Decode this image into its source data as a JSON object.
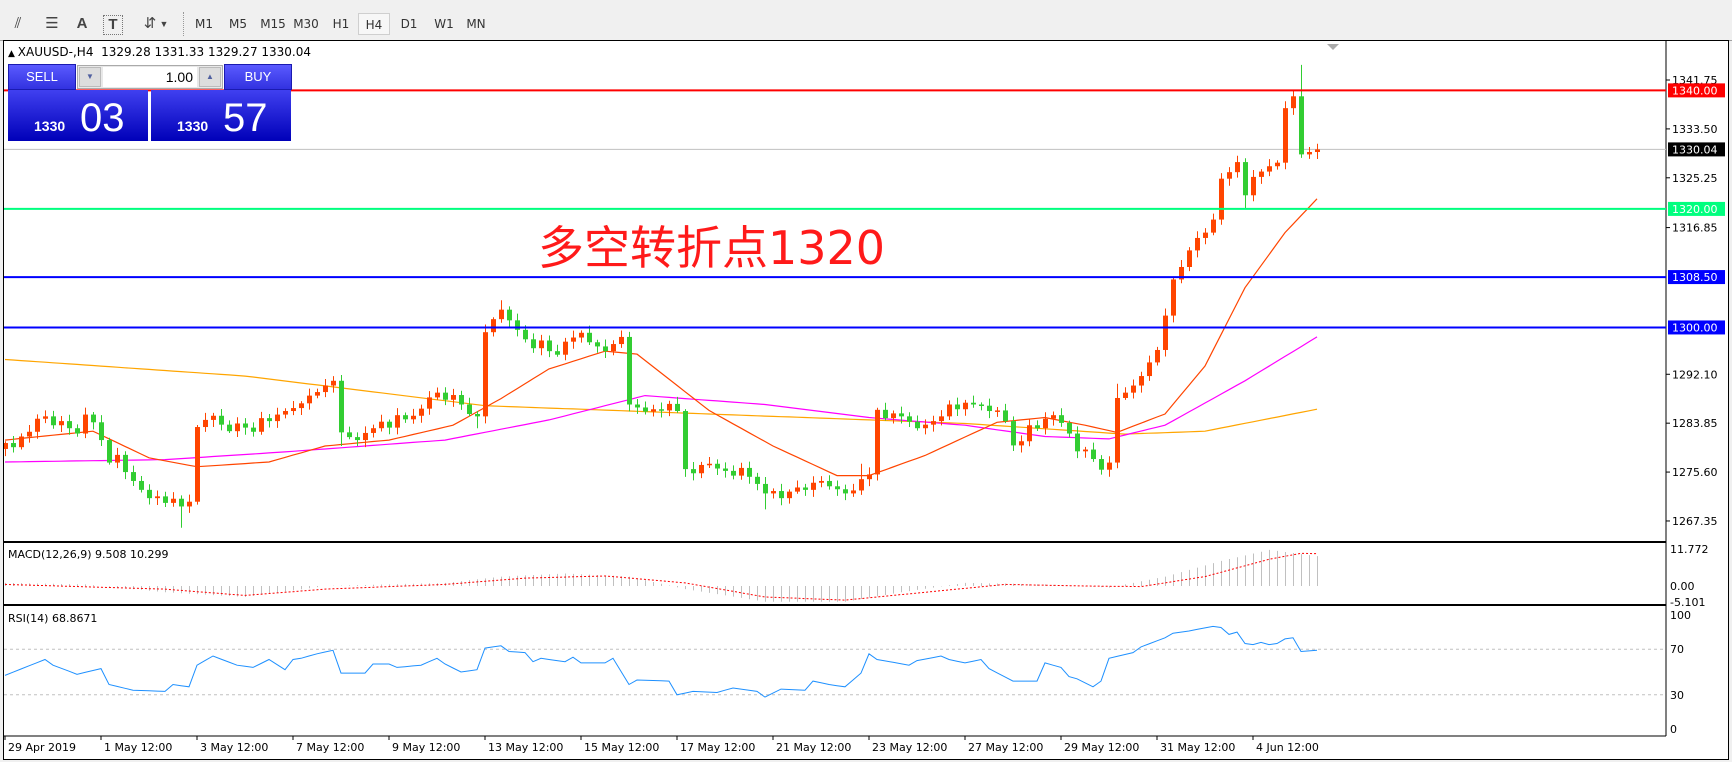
{
  "toolbar": {
    "tools": [
      {
        "icon": "fibonacci-expansion-icon",
        "glyph": "⫽"
      },
      {
        "icon": "fibonacci-fan-icon",
        "glyph": "☰"
      },
      {
        "icon": "text-icon",
        "glyph": "A"
      },
      {
        "icon": "text-label-icon",
        "glyph": "T"
      },
      {
        "icon": "arrows-icon",
        "glyph": "⇵"
      }
    ],
    "timeframes": [
      "M1",
      "M5",
      "M15",
      "M30",
      "H1",
      "H4",
      "D1",
      "W1",
      "MN"
    ],
    "selected_timeframe": "H4"
  },
  "chart": {
    "header": "XAUUSD-,H4  1329.28 1331.33 1329.27 1330.04",
    "annotation": "多空转折点1320",
    "trade_panel": {
      "sell_label": "SELL",
      "buy_label": "BUY",
      "lot": "1.00",
      "sell_price_prefix": "1330",
      "sell_price_big": "03",
      "buy_price_prefix": "1330",
      "buy_price_big": "57"
    },
    "macd_label": "MACD(12,26,9) 9.508 10.299",
    "rsi_label": "RSI(14) 68.8671"
  },
  "chart_data": {
    "type": "candlestick",
    "symbol": "XAUUSD-",
    "timeframe": "H4",
    "up_color": "#ff4500",
    "down_color": "#32cd32",
    "first_open": 1279.5,
    "closes": [
      1280.5,
      1279.8,
      1281.6,
      1282.4,
      1284.6,
      1285.0,
      1283.5,
      1284.2,
      1283.0,
      1282.1,
      1285.3,
      1284.0,
      1281.0,
      1277.2,
      1278.5,
      1275.6,
      1274.1,
      1272.6,
      1271.2,
      1271.5,
      1270.4,
      1271.1,
      1269.8,
      1270.6,
      1283.2,
      1284.4,
      1285.1,
      1283.6,
      1282.5,
      1283.8,
      1283.1,
      1282.4,
      1284.7,
      1284.2,
      1285.3,
      1285.9,
      1286.4,
      1287.2,
      1288.5,
      1289.1,
      1290.2,
      1291.0,
      1282.3,
      1281.5,
      1281.0,
      1282.2,
      1283.0,
      1284.1,
      1283.1,
      1285.2,
      1284.5,
      1285.1,
      1286.3,
      1288.2,
      1289.0,
      1287.8,
      1288.6,
      1287.0,
      1285.4,
      1285.0,
      1299.2,
      1301.4,
      1303.0,
      1301.2,
      1299.6,
      1298.0,
      1296.5,
      1297.8,
      1296.0,
      1295.4,
      1297.6,
      1298.3,
      1299.1,
      1297.5,
      1296.8,
      1296.0,
      1297.2,
      1298.4,
      1287.0,
      1286.5,
      1285.8,
      1286.2,
      1286.0,
      1287.1,
      1285.9,
      1276.1,
      1275.4,
      1276.8,
      1277.0,
      1276.2,
      1275.8,
      1275.0,
      1276.3,
      1274.8,
      1273.6,
      1272.0,
      1272.4,
      1271.2,
      1272.3,
      1273.0,
      1272.6,
      1273.8,
      1274.1,
      1273.2,
      1272.7,
      1272.0,
      1272.5,
      1274.4,
      1275.2,
      1286.1,
      1284.7,
      1285.5,
      1285.0,
      1284.1,
      1283.0,
      1283.6,
      1284.2,
      1285.0,
      1287.0,
      1286.2,
      1287.3,
      1287.0,
      1286.8,
      1285.9,
      1286.0,
      1284.2,
      1280.1,
      1280.8,
      1283.5,
      1283.0,
      1284.6,
      1285.2,
      1283.9,
      1282.1,
      1279.1,
      1279.4,
      1277.8,
      1276.0,
      1277.2,
      1288.1,
      1289.0,
      1290.2,
      1291.8,
      1294.1,
      1296.2,
      1302.0,
      1308.1,
      1310.2,
      1313.0,
      1315.1,
      1316.0,
      1318.2,
      1325.1,
      1326.2,
      1327.9,
      1322.3,
      1325.4,
      1326.3,
      1327.2,
      1327.8,
      1337.0,
      1339.0,
      1329.2,
      1329.6,
      1330.04
    ],
    "wick_highs": {
      "60": 1300.5,
      "62": 1304.6,
      "161": 1340.0,
      "162": 1344.3,
      "107": 1277.0,
      "139": 1290.5
    },
    "wick_lows": {
      "22": 1266.2,
      "95": 1269.3,
      "59": 1283.0,
      "42": 1280.0,
      "85": 1274.8,
      "155": 1320.0
    },
    "ma_fast": [
      [
        0,
        1281
      ],
      [
        11,
        1282.5
      ],
      [
        18,
        1278
      ],
      [
        24,
        1276.5
      ],
      [
        33,
        1277.3
      ],
      [
        40,
        1280
      ],
      [
        48,
        1281
      ],
      [
        56,
        1283.5
      ],
      [
        62,
        1288
      ],
      [
        68,
        1293
      ],
      [
        75,
        1296
      ],
      [
        79,
        1295.5
      ],
      [
        88,
        1286
      ],
      [
        96,
        1280
      ],
      [
        104,
        1275
      ],
      [
        108,
        1275
      ],
      [
        115,
        1278.4
      ],
      [
        124,
        1284
      ],
      [
        130,
        1284.8
      ],
      [
        135,
        1283.5
      ],
      [
        139,
        1282.3
      ],
      [
        145,
        1285.4
      ],
      [
        150,
        1293.5
      ],
      [
        155,
        1306.7
      ],
      [
        160,
        1316
      ],
      [
        164,
        1321.7
      ]
    ],
    "ma_fast_color": "#ff4500",
    "ma_mid": [
      [
        0,
        1277.3
      ],
      [
        20,
        1277.7
      ],
      [
        35,
        1279
      ],
      [
        55,
        1281
      ],
      [
        68,
        1284.4
      ],
      [
        80,
        1288.5
      ],
      [
        95,
        1287
      ],
      [
        108,
        1284.8
      ],
      [
        120,
        1283.5
      ],
      [
        130,
        1281.6
      ],
      [
        138,
        1281.2
      ],
      [
        145,
        1283.5
      ],
      [
        155,
        1291
      ],
      [
        164,
        1298.4
      ]
    ],
    "ma_mid_color": "#ff00ff",
    "ma_slow": [
      [
        0,
        1294.6
      ],
      [
        30,
        1291.8
      ],
      [
        60,
        1286.8
      ],
      [
        80,
        1285.8
      ],
      [
        120,
        1283.8
      ],
      [
        140,
        1282
      ],
      [
        150,
        1282.5
      ],
      [
        164,
        1286.2
      ]
    ],
    "ma_slow_color": "#ffa500",
    "levels": [
      {
        "price": 1340.0,
        "label": "1340.00",
        "color": "#ff0000"
      },
      {
        "price": 1320.0,
        "label": "1320.00",
        "color": "#00ff7f"
      },
      {
        "price": 1308.5,
        "label": "1308.50",
        "color": "#0000ff"
      },
      {
        "price": 1300.0,
        "label": "1300.00",
        "color": "#0000ff"
      }
    ],
    "current_price": {
      "price": 1330.04,
      "label": "1330.04"
    },
    "price_ticks": [
      "1341.75",
      "1333.50",
      "1325.25",
      "1316.85",
      "1292.10",
      "1283.85",
      "1275.60",
      "1267.35"
    ],
    "time_labels": [
      "29 Apr 2019",
      "1 May 12:00",
      "3 May 12:00",
      "7 May 12:00",
      "9 May 12:00",
      "13 May 12:00",
      "15 May 12:00",
      "17 May 12:00",
      "21 May 12:00",
      "23 May 12:00",
      "27 May 12:00",
      "29 May 12:00",
      "31 May 12:00",
      "4 Jun 12:00"
    ],
    "macd": {
      "ticks": [
        "11.772",
        "0.00",
        "-5.101"
      ],
      "histogram": [
        [
          0,
          1
        ],
        [
          10,
          0.5
        ],
        [
          20,
          -2
        ],
        [
          30,
          -3.5
        ],
        [
          40,
          0
        ],
        [
          55,
          1
        ],
        [
          62,
          3
        ],
        [
          70,
          4
        ],
        [
          78,
          3
        ],
        [
          85,
          -1
        ],
        [
          95,
          -5
        ],
        [
          105,
          -5
        ],
        [
          112,
          -2
        ],
        [
          120,
          1
        ],
        [
          130,
          0.5
        ],
        [
          138,
          -0.5
        ],
        [
          145,
          3
        ],
        [
          152,
          8
        ],
        [
          158,
          11.5
        ],
        [
          164,
          9.5
        ]
      ],
      "signal": [
        [
          0,
          0.5
        ],
        [
          20,
          -1
        ],
        [
          30,
          -3
        ],
        [
          40,
          -1
        ],
        [
          55,
          0.5
        ],
        [
          65,
          2.5
        ],
        [
          75,
          3.2
        ],
        [
          85,
          1
        ],
        [
          95,
          -3.5
        ],
        [
          105,
          -4.5
        ],
        [
          115,
          -2
        ],
        [
          125,
          0.5
        ],
        [
          135,
          0
        ],
        [
          142,
          -0.2
        ],
        [
          150,
          3
        ],
        [
          158,
          8.5
        ],
        [
          162,
          10.4
        ],
        [
          164,
          10.3
        ]
      ],
      "histogram_color": "#c0c0c0",
      "signal_color": "#ff0000"
    },
    "rsi": {
      "ticks": [
        "100",
        "70",
        "30",
        "0"
      ],
      "levels": [
        70,
        30
      ],
      "color": "#1e90ff",
      "values": [
        [
          0,
          47
        ],
        [
          5,
          61
        ],
        [
          6,
          56
        ],
        [
          9,
          48
        ],
        [
          12,
          53
        ],
        [
          13,
          39
        ],
        [
          16,
          34
        ],
        [
          20,
          33
        ],
        [
          21,
          39
        ],
        [
          23,
          37
        ],
        [
          24,
          56
        ],
        [
          26,
          64
        ],
        [
          29,
          56
        ],
        [
          31,
          54
        ],
        [
          33,
          61
        ],
        [
          35,
          52
        ],
        [
          36,
          61
        ],
        [
          37,
          62
        ],
        [
          39,
          66
        ],
        [
          41,
          69
        ],
        [
          42,
          49
        ],
        [
          45,
          49
        ],
        [
          46,
          57
        ],
        [
          48,
          57
        ],
        [
          49,
          54
        ],
        [
          52,
          56
        ],
        [
          54,
          62
        ],
        [
          55,
          57
        ],
        [
          57,
          50
        ],
        [
          59,
          52
        ],
        [
          60,
          71
        ],
        [
          62,
          73
        ],
        [
          63,
          68
        ],
        [
          65,
          67
        ],
        [
          66,
          59
        ],
        [
          67,
          62
        ],
        [
          70,
          59
        ],
        [
          71,
          63
        ],
        [
          72,
          58
        ],
        [
          75,
          58
        ],
        [
          76,
          62
        ],
        [
          78,
          39
        ],
        [
          79,
          43
        ],
        [
          83,
          42
        ],
        [
          84,
          30
        ],
        [
          86,
          33
        ],
        [
          89,
          32
        ],
        [
          91,
          36
        ],
        [
          94,
          33
        ],
        [
          95,
          28
        ],
        [
          97,
          35
        ],
        [
          100,
          34
        ],
        [
          101,
          42
        ],
        [
          103,
          39
        ],
        [
          105,
          37
        ],
        [
          107,
          49
        ],
        [
          108,
          66
        ],
        [
          109,
          61
        ],
        [
          113,
          56
        ],
        [
          114,
          60
        ],
        [
          117,
          64
        ],
        [
          118,
          61
        ],
        [
          120,
          58
        ],
        [
          122,
          61
        ],
        [
          123,
          53
        ],
        [
          126,
          42
        ],
        [
          129,
          42
        ],
        [
          130,
          58
        ],
        [
          132,
          54
        ],
        [
          133,
          46
        ],
        [
          134,
          44
        ],
        [
          136,
          37
        ],
        [
          137,
          42
        ],
        [
          138,
          62
        ],
        [
          141,
          67
        ],
        [
          142,
          72
        ],
        [
          145,
          80
        ],
        [
          146,
          84
        ],
        [
          148,
          86
        ],
        [
          151,
          90
        ],
        [
          152,
          89
        ],
        [
          153,
          83
        ],
        [
          154,
          85
        ],
        [
          155,
          75
        ],
        [
          156,
          74
        ],
        [
          157,
          76
        ],
        [
          158,
          74
        ],
        [
          159,
          75
        ],
        [
          160,
          79
        ],
        [
          161,
          80
        ],
        [
          162,
          68
        ],
        [
          164,
          69
        ]
      ]
    }
  }
}
